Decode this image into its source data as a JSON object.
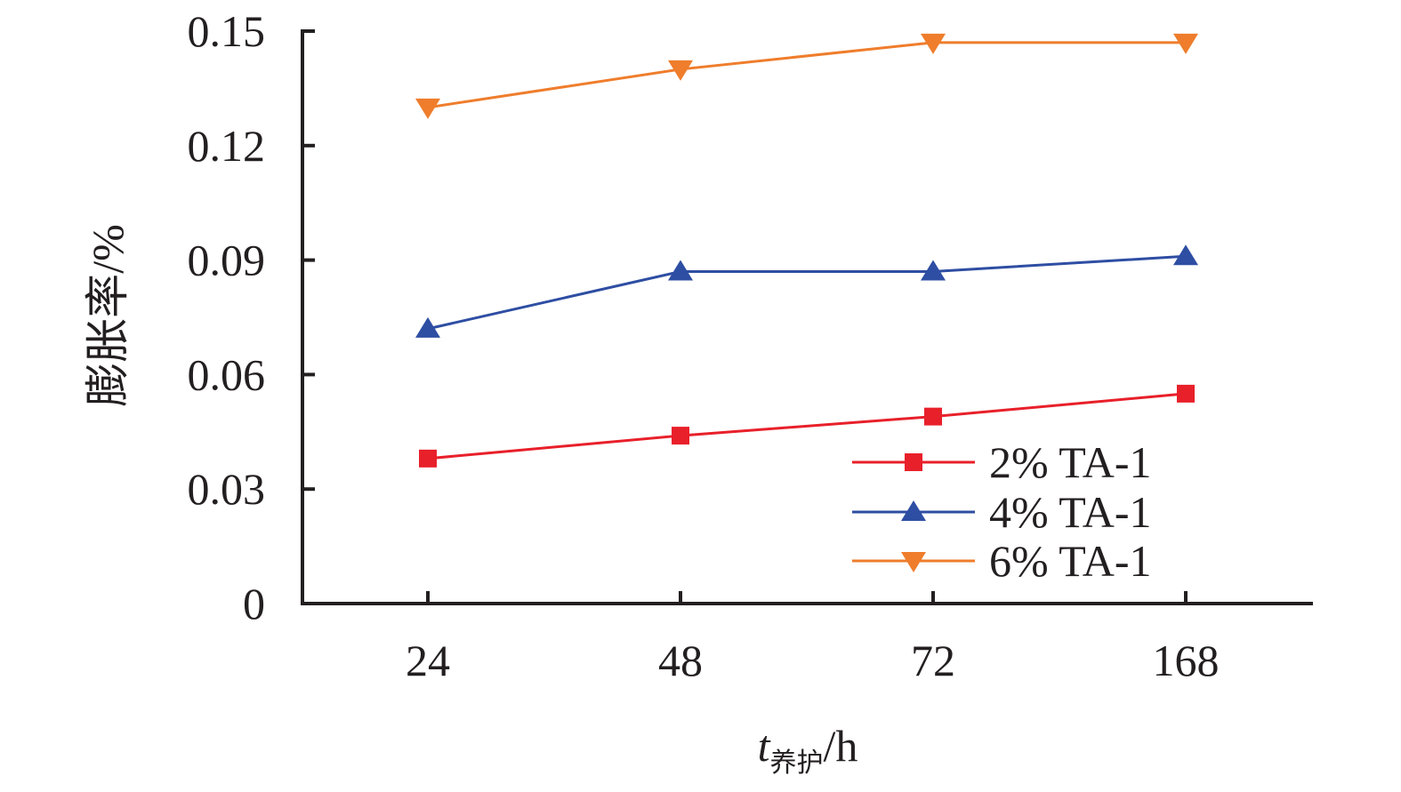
{
  "chart_data": {
    "type": "line",
    "title": "",
    "categories": [
      "24",
      "48",
      "72",
      "168"
    ],
    "x_unit": "h",
    "xlabel_main": "t",
    "xlabel_sub": "养护",
    "xlabel_suffix": "/h",
    "ylabel": "膨胀率/%",
    "ylim": [
      0,
      0.15
    ],
    "yticks": [
      0,
      0.03,
      0.06,
      0.09,
      0.12,
      0.15
    ],
    "ytick_labels": [
      "0",
      "0.03",
      "0.06",
      "0.09",
      "0.12",
      "0.15"
    ],
    "grid": false,
    "legend_position": "bottom-right",
    "series": [
      {
        "name": "2% TA-1",
        "values": [
          0.038,
          0.044,
          0.049,
          0.055
        ],
        "color": "#e8202a",
        "marker": "square"
      },
      {
        "name": "4% TA-1",
        "values": [
          0.072,
          0.087,
          0.087,
          0.091
        ],
        "color": "#2e4ea3",
        "marker": "triangle-up"
      },
      {
        "name": "6% TA-1",
        "values": [
          0.13,
          0.14,
          0.147,
          0.147
        ],
        "color": "#ef7d2c",
        "marker": "triangle-down"
      }
    ]
  }
}
